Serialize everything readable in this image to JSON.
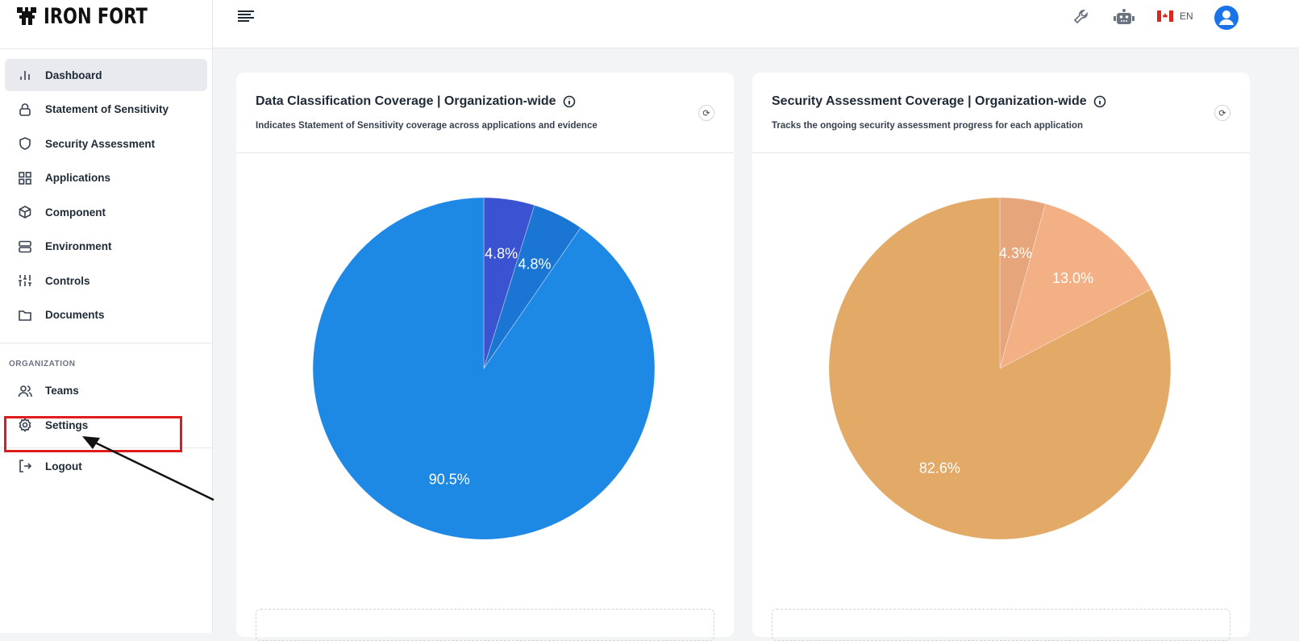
{
  "brand": {
    "name": "IRON FORT"
  },
  "sidebar": {
    "items": [
      {
        "label": "Dashboard",
        "icon": "bar-chart-icon",
        "active": true
      },
      {
        "label": "Statement of Sensitivity",
        "icon": "lock-icon"
      },
      {
        "label": "Security Assessment",
        "icon": "shield-icon"
      },
      {
        "label": "Applications",
        "icon": "grid-icon"
      },
      {
        "label": "Component",
        "icon": "cube-icon"
      },
      {
        "label": "Environment",
        "icon": "server-icon"
      },
      {
        "label": "Controls",
        "icon": "sliders-icon"
      },
      {
        "label": "Documents",
        "icon": "folder-icon"
      }
    ],
    "section": "ORGANIZATION",
    "org_items": [
      {
        "label": "Teams",
        "icon": "users-icon"
      },
      {
        "label": "Settings",
        "icon": "gear-icon"
      }
    ],
    "logout": "Logout"
  },
  "topbar": {
    "lang": "EN"
  },
  "chart_data": [
    {
      "type": "pie",
      "title": "Data Classification Coverage | Organization-wide",
      "subtitle": "Indicates Statement of Sensitivity coverage across applications and evidence",
      "values": [
        4.8,
        4.8,
        90.5
      ],
      "labels": [
        "4.8%",
        "4.8%",
        "90.5%"
      ],
      "colors": [
        "#3a53d0",
        "#1a76d2",
        "#1e88e5"
      ]
    },
    {
      "type": "pie",
      "title": "Security Assessment Coverage | Organization-wide",
      "subtitle": "Tracks the ongoing security assessment progress for each application",
      "values": [
        4.3,
        13.0,
        82.6
      ],
      "labels": [
        "4.3%",
        "13.0%",
        "82.6%"
      ],
      "colors": [
        "#e6a57a",
        "#f2b084",
        "#e3a967"
      ]
    }
  ]
}
